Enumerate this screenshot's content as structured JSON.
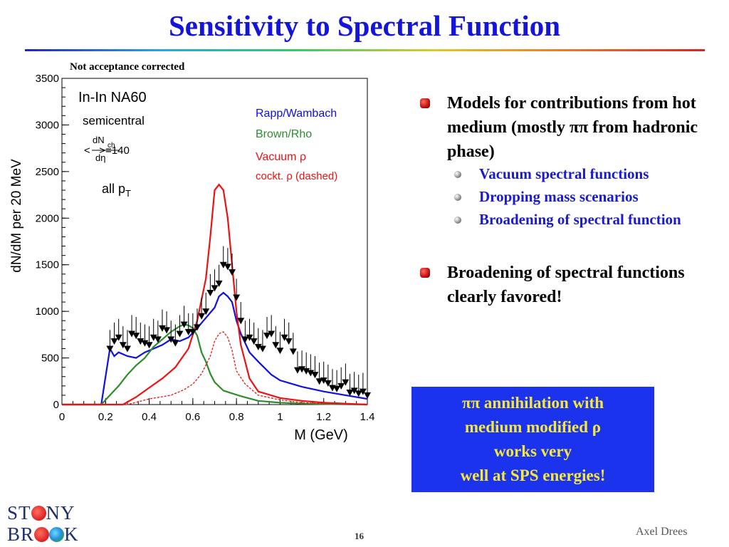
{
  "slide": {
    "title": "Sensitivity to Spectral Function",
    "note": "Not acceptance corrected",
    "author": "Axel Drees",
    "page_number": "16",
    "logo": {
      "line1_pre": "ST",
      "line1_post": "NY",
      "line2_pre": "BR",
      "line2_post": "K"
    }
  },
  "bullets": {
    "item1": "Models for contributions from hot medium (mostly ππ from hadronic phase)",
    "sub": [
      "Vacuum spectral functions",
      "Dropping mass scenarios",
      "Broadening of spectral function"
    ],
    "item2": "Broadening of spectral functions clearly favored!"
  },
  "box": {
    "lines": [
      "ππ annihilation with",
      "medium modified ρ",
      "works very",
      "well at SPS energies!"
    ]
  },
  "colors": {
    "title": "#1515d8",
    "rapp": "#1010e0",
    "brown": "#2e8b2e",
    "vacuum": "#ee1111",
    "box_bg": "#1c33ee",
    "box_text": "#f5e83a"
  },
  "chart_data": {
    "type": "line",
    "title": "",
    "xlabel": "M (GeV)",
    "ylabel": "dN/dM per 20 MeV",
    "xlim": [
      0,
      1.4
    ],
    "ylim": [
      0,
      3500
    ],
    "x_ticks": [
      "0",
      "0.2",
      "0.4",
      "0.6",
      "0.8",
      "1",
      "1.2",
      "1.4"
    ],
    "y_ticks": [
      "0",
      "500",
      "1000",
      "1500",
      "2000",
      "2500",
      "3000",
      "3500"
    ],
    "annotations": {
      "experiment": "In-In NA60",
      "centrality": "semicentral",
      "mult_num": "dN",
      "mult_sub": "ch",
      "mult_den": "dη",
      "mult_value": "<   >=140",
      "pt_main": "all p",
      "pt_sub": "T"
    },
    "legend": {
      "placement": "top-right",
      "entries": [
        "Rapp/Wambach",
        "Brown/Rho",
        "Vacuum ρ",
        "cockt. ρ (dashed)"
      ]
    },
    "data_points": {
      "x": [
        0.22,
        0.24,
        0.26,
        0.28,
        0.3,
        0.32,
        0.34,
        0.36,
        0.38,
        0.4,
        0.42,
        0.44,
        0.46,
        0.48,
        0.5,
        0.52,
        0.54,
        0.56,
        0.58,
        0.6,
        0.62,
        0.64,
        0.66,
        0.68,
        0.7,
        0.72,
        0.74,
        0.76,
        0.78,
        0.8,
        0.82,
        0.84,
        0.86,
        0.88,
        0.9,
        0.92,
        0.94,
        0.96,
        0.98,
        1.0,
        1.02,
        1.04,
        1.06,
        1.08,
        1.1,
        1.12,
        1.14,
        1.16,
        1.18,
        1.2,
        1.22,
        1.24,
        1.26,
        1.28,
        1.3,
        1.32,
        1.34,
        1.36,
        1.38,
        1.4
      ],
      "y": [
        600,
        680,
        720,
        640,
        600,
        760,
        740,
        680,
        660,
        640,
        720,
        700,
        820,
        800,
        700,
        660,
        760,
        860,
        780,
        780,
        830,
        950,
        1000,
        1200,
        1250,
        1300,
        1500,
        1480,
        1420,
        1150,
        900,
        700,
        720,
        680,
        620,
        600,
        740,
        760,
        640,
        580,
        720,
        680,
        570,
        370,
        380,
        360,
        340,
        320,
        250,
        260,
        230,
        180,
        170,
        200,
        240,
        130,
        150,
        120,
        140,
        100
      ],
      "err_up": [
        200,
        200,
        200,
        200,
        200,
        200,
        200,
        200,
        200,
        200,
        200,
        200,
        200,
        200,
        200,
        200,
        200,
        200,
        200,
        200,
        200,
        200,
        200,
        200,
        200,
        200,
        200,
        200,
        200,
        200,
        200,
        200,
        200,
        200,
        200,
        200,
        200,
        200,
        200,
        200,
        200,
        200,
        200,
        200,
        200,
        200,
        200,
        200,
        200,
        200,
        200,
        200,
        200,
        200,
        200,
        200,
        200,
        200,
        200,
        200
      ]
    },
    "series": [
      {
        "name": "Rapp/Wambach",
        "style": "solid",
        "color": "#1010e0",
        "x": [
          0,
          0.18,
          0.2,
          0.22,
          0.24,
          0.26,
          0.3,
          0.34,
          0.38,
          0.42,
          0.46,
          0.5,
          0.54,
          0.58,
          0.62,
          0.66,
          0.7,
          0.72,
          0.74,
          0.76,
          0.78,
          0.8,
          0.82,
          0.86,
          0.9,
          0.96,
          1.0,
          1.1,
          1.2,
          1.3,
          1.4
        ],
        "y": [
          0,
          0,
          300,
          600,
          520,
          560,
          520,
          500,
          560,
          600,
          640,
          700,
          680,
          720,
          820,
          930,
          1040,
          1160,
          1200,
          1160,
          1100,
          900,
          760,
          560,
          460,
          320,
          260,
          190,
          140,
          100,
          60
        ]
      },
      {
        "name": "Brown/Rho",
        "style": "solid",
        "color": "#2e8b2e",
        "x": [
          0,
          0.18,
          0.22,
          0.26,
          0.3,
          0.34,
          0.38,
          0.42,
          0.46,
          0.5,
          0.54,
          0.56,
          0.58,
          0.6,
          0.62,
          0.64,
          0.66,
          0.68,
          0.7,
          0.74,
          0.78,
          0.82,
          0.9,
          1.0,
          1.1,
          1.2,
          1.4
        ],
        "y": [
          0,
          0,
          100,
          200,
          320,
          420,
          500,
          620,
          700,
          780,
          840,
          860,
          850,
          820,
          740,
          560,
          460,
          330,
          240,
          150,
          120,
          90,
          40,
          20,
          10,
          5,
          0
        ]
      },
      {
        "name": "Vacuum ρ",
        "style": "solid",
        "color": "#ee1111",
        "x": [
          0,
          0.28,
          0.34,
          0.4,
          0.46,
          0.52,
          0.58,
          0.62,
          0.66,
          0.68,
          0.7,
          0.72,
          0.74,
          0.76,
          0.78,
          0.8,
          0.82,
          0.86,
          0.9,
          1.0,
          1.1,
          1.2,
          1.4
        ],
        "y": [
          0,
          0,
          80,
          180,
          280,
          400,
          600,
          900,
          1350,
          1800,
          2300,
          2360,
          2300,
          2000,
          1500,
          1000,
          640,
          280,
          140,
          70,
          40,
          20,
          0
        ]
      },
      {
        "name": "cockt. ρ",
        "style": "dashed",
        "color": "#ee1111",
        "x": [
          0,
          0.3,
          0.4,
          0.5,
          0.56,
          0.6,
          0.64,
          0.68,
          0.7,
          0.72,
          0.74,
          0.76,
          0.78,
          0.8,
          0.84,
          0.9,
          1.0,
          1.1,
          1.2,
          1.4
        ],
        "y": [
          0,
          0,
          60,
          100,
          160,
          220,
          330,
          520,
          680,
          760,
          780,
          720,
          580,
          360,
          220,
          100,
          50,
          20,
          10,
          0
        ]
      }
    ]
  }
}
